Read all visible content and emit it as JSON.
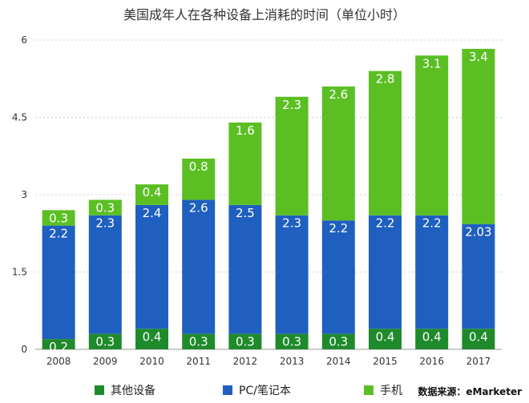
{
  "chart_data": {
    "type": "bar",
    "stacked": true,
    "title": "美国成年人在各种设备上消耗的时间（单位小时）",
    "xlabel": "",
    "ylabel": "",
    "ylim": [
      0,
      6
    ],
    "yticks": [
      "0",
      "1.5",
      "3",
      "4.5",
      "6"
    ],
    "ytick_values": [
      0,
      1.5,
      3,
      4.5,
      6
    ],
    "grid": true,
    "legend_position": "bottom",
    "categories": [
      "2008",
      "2009",
      "2010",
      "2011",
      "2012",
      "2013",
      "2014",
      "2015",
      "2016",
      "2017"
    ],
    "series": [
      {
        "name": "其他设备",
        "color": "#1f8a2b",
        "values": [
          0.2,
          0.3,
          0.4,
          0.3,
          0.3,
          0.3,
          0.3,
          0.4,
          0.4,
          0.4
        ],
        "labels": [
          "0.2",
          "0.3",
          "0.4",
          "0.3",
          "0.3",
          "0.3",
          "0.3",
          "0.4",
          "0.4",
          "0.4"
        ]
      },
      {
        "name": "PC/笔记本",
        "color": "#1f5fbf",
        "values": [
          2.2,
          2.3,
          2.4,
          2.6,
          2.5,
          2.3,
          2.2,
          2.2,
          2.2,
          2.03
        ],
        "labels": [
          "2.2",
          "2.3",
          "2.4",
          "2.6",
          "2.5",
          "2.3",
          "2.2",
          "2.2",
          "2.2",
          "2.03"
        ]
      },
      {
        "name": "手机",
        "color": "#5bbf24",
        "values": [
          0.3,
          0.3,
          0.4,
          0.8,
          1.6,
          2.3,
          2.6,
          2.8,
          3.1,
          3.4
        ],
        "labels": [
          "0.3",
          "0.3",
          "0.4",
          "0.8",
          "1.6",
          "2.3",
          "2.6",
          "2.8",
          "3.1",
          "3.4"
        ]
      }
    ],
    "source": "数据来源：eMarketer"
  }
}
